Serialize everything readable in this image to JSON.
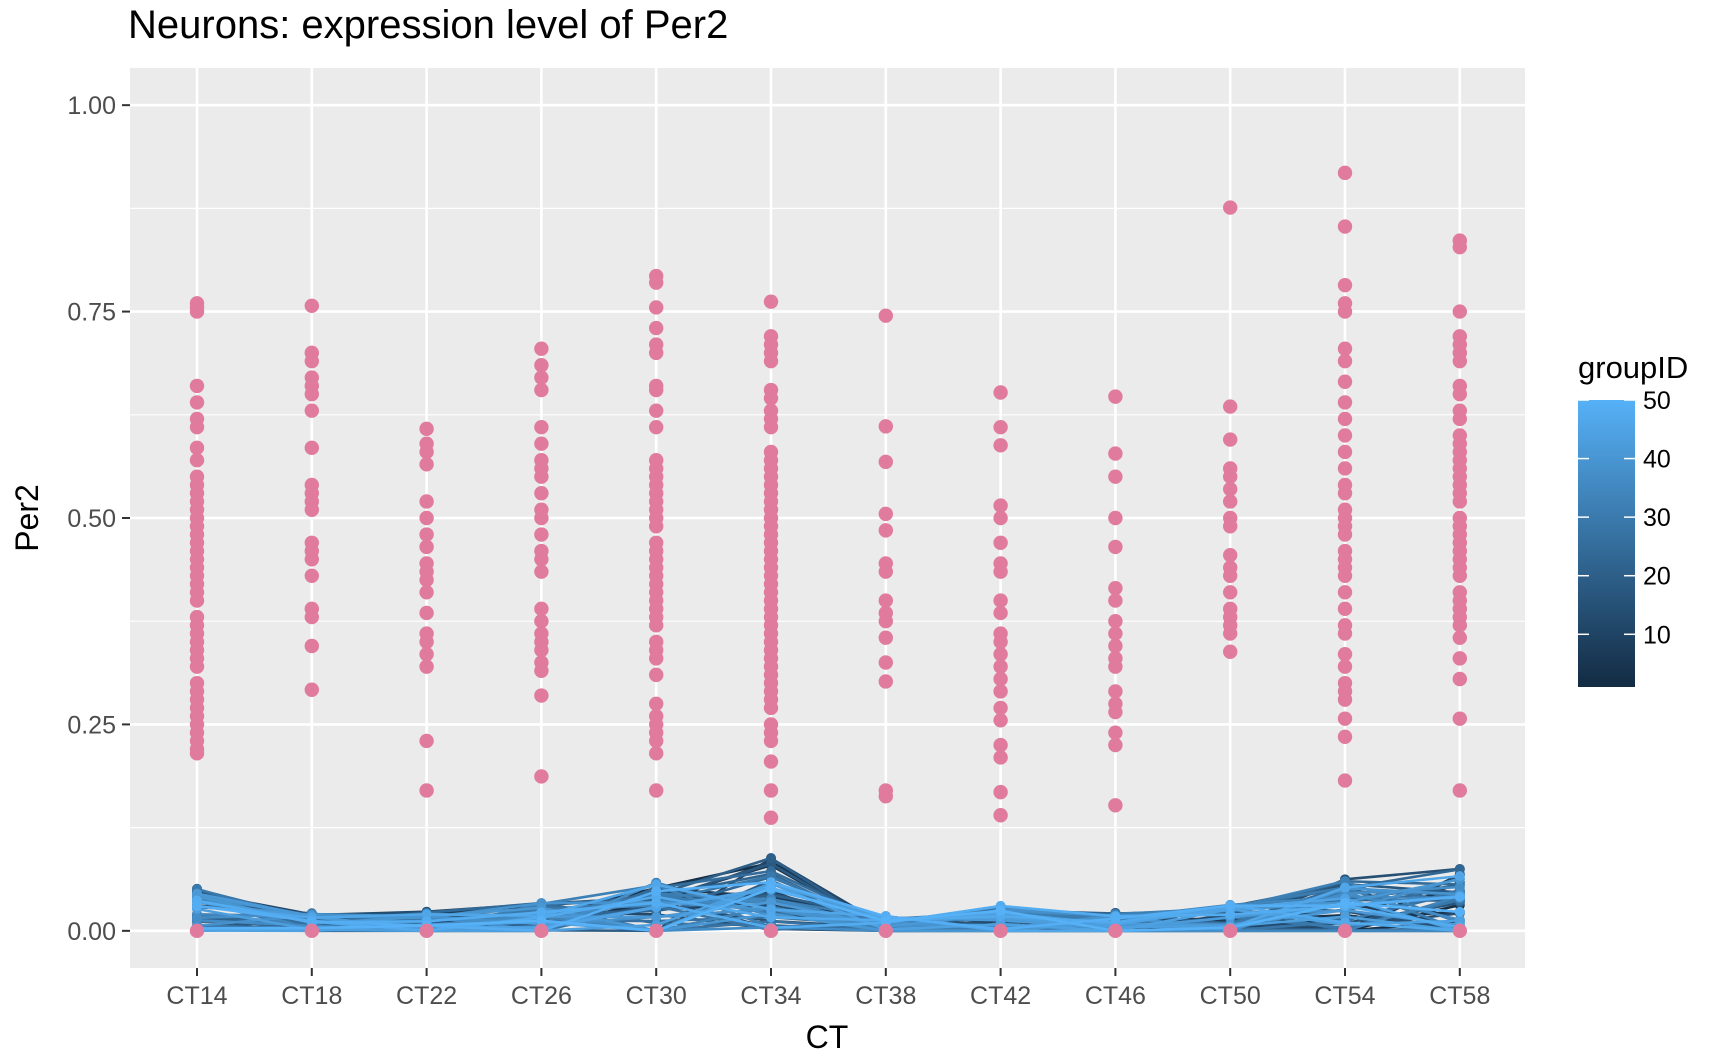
{
  "chart_data": {
    "type": "scatter",
    "title": "Neurons: expression level of Per2",
    "xlabel": "CT",
    "ylabel": "Per2",
    "categories": [
      "CT14",
      "CT18",
      "CT22",
      "CT26",
      "CT30",
      "CT34",
      "CT38",
      "CT42",
      "CT46",
      "CT50",
      "CT54",
      "CT58"
    ],
    "ylim": [
      -0.045,
      1.045
    ],
    "yticks": [
      0,
      0.25,
      0.5,
      0.75,
      1.0
    ],
    "ytick_labels": [
      "0.00",
      "0.25",
      "0.50",
      "0.75",
      "1.00"
    ],
    "grid": true,
    "point_color": "#e07b9e",
    "panel_background": "#ebebeb",
    "points": [
      [
        0.76,
        0.755,
        0.75,
        0.66,
        0.64,
        0.62,
        0.61,
        0.585,
        0.57,
        0.55,
        0.54,
        0.53,
        0.52,
        0.51,
        0.5,
        0.49,
        0.48,
        0.47,
        0.46,
        0.45,
        0.44,
        0.43,
        0.42,
        0.41,
        0.4,
        0.38,
        0.37,
        0.36,
        0.35,
        0.34,
        0.33,
        0.32,
        0.3,
        0.29,
        0.28,
        0.27,
        0.26,
        0.25,
        0.24,
        0.23,
        0.22,
        0.215,
        0
      ],
      [
        0.757,
        0.7,
        0.69,
        0.67,
        0.66,
        0.65,
        0.63,
        0.585,
        0.54,
        0.53,
        0.52,
        0.51,
        0.47,
        0.46,
        0.45,
        0.43,
        0.39,
        0.38,
        0.345,
        0.292,
        0
      ],
      [
        0.608,
        0.59,
        0.58,
        0.565,
        0.52,
        0.5,
        0.48,
        0.465,
        0.445,
        0.435,
        0.425,
        0.41,
        0.385,
        0.36,
        0.35,
        0.335,
        0.32,
        0.23,
        0.17,
        0
      ],
      [
        0.705,
        0.685,
        0.67,
        0.655,
        0.61,
        0.59,
        0.57,
        0.56,
        0.55,
        0.53,
        0.51,
        0.5,
        0.48,
        0.46,
        0.45,
        0.435,
        0.39,
        0.375,
        0.36,
        0.35,
        0.34,
        0.325,
        0.315,
        0.285,
        0.187,
        0
      ],
      [
        0.793,
        0.785,
        0.755,
        0.73,
        0.71,
        0.7,
        0.66,
        0.655,
        0.63,
        0.61,
        0.57,
        0.56,
        0.55,
        0.54,
        0.53,
        0.52,
        0.51,
        0.5,
        0.49,
        0.47,
        0.46,
        0.45,
        0.44,
        0.43,
        0.42,
        0.41,
        0.4,
        0.39,
        0.38,
        0.37,
        0.35,
        0.34,
        0.33,
        0.31,
        0.275,
        0.26,
        0.25,
        0.24,
        0.23,
        0.215,
        0.17,
        0
      ],
      [
        0.762,
        0.72,
        0.71,
        0.7,
        0.69,
        0.655,
        0.645,
        0.63,
        0.62,
        0.61,
        0.58,
        0.57,
        0.56,
        0.55,
        0.54,
        0.53,
        0.52,
        0.51,
        0.5,
        0.49,
        0.48,
        0.47,
        0.46,
        0.45,
        0.44,
        0.43,
        0.42,
        0.41,
        0.4,
        0.39,
        0.38,
        0.37,
        0.36,
        0.35,
        0.34,
        0.33,
        0.32,
        0.31,
        0.3,
        0.29,
        0.28,
        0.27,
        0.25,
        0.24,
        0.23,
        0.205,
        0.17,
        0.137,
        0
      ],
      [
        0.745,
        0.611,
        0.568,
        0.505,
        0.485,
        0.445,
        0.435,
        0.4,
        0.385,
        0.375,
        0.355,
        0.325,
        0.302,
        0.17,
        0.163,
        0
      ],
      [
        0.652,
        0.61,
        0.588,
        0.515,
        0.5,
        0.47,
        0.445,
        0.435,
        0.4,
        0.385,
        0.36,
        0.35,
        0.335,
        0.32,
        0.305,
        0.29,
        0.27,
        0.255,
        0.225,
        0.21,
        0.168,
        0.14,
        0
      ],
      [
        0.647,
        0.578,
        0.55,
        0.5,
        0.465,
        0.415,
        0.4,
        0.375,
        0.36,
        0.345,
        0.33,
        0.32,
        0.29,
        0.275,
        0.265,
        0.24,
        0.225,
        0.152,
        0
      ],
      [
        0.876,
        0.635,
        0.595,
        0.56,
        0.55,
        0.535,
        0.52,
        0.5,
        0.49,
        0.455,
        0.44,
        0.43,
        0.41,
        0.39,
        0.38,
        0.37,
        0.36,
        0.338,
        0
      ],
      [
        0.918,
        0.853,
        0.782,
        0.76,
        0.75,
        0.705,
        0.69,
        0.665,
        0.64,
        0.62,
        0.6,
        0.58,
        0.56,
        0.54,
        0.53,
        0.51,
        0.5,
        0.49,
        0.48,
        0.46,
        0.45,
        0.44,
        0.43,
        0.41,
        0.39,
        0.37,
        0.36,
        0.335,
        0.32,
        0.3,
        0.29,
        0.28,
        0.257,
        0.235,
        0.182,
        0
      ],
      [
        0.836,
        0.828,
        0.75,
        0.72,
        0.71,
        0.7,
        0.69,
        0.66,
        0.65,
        0.63,
        0.62,
        0.6,
        0.59,
        0.58,
        0.57,
        0.56,
        0.55,
        0.54,
        0.53,
        0.52,
        0.5,
        0.49,
        0.48,
        0.47,
        0.46,
        0.45,
        0.44,
        0.43,
        0.41,
        0.4,
        0.39,
        0.38,
        0.37,
        0.355,
        0.33,
        0.305,
        0.257,
        0.17,
        0
      ]
    ],
    "line_series_count": 50,
    "line_profile": {
      "base": [
        0.022,
        0.01,
        0.008,
        0.015,
        0.02,
        0.045,
        0.004,
        0.01,
        0.008,
        0.012,
        0.025,
        0.03
      ],
      "spread": [
        0.045,
        0.018,
        0.022,
        0.028,
        0.055,
        0.065,
        0.02,
        0.03,
        0.02,
        0.03,
        0.055,
        0.065
      ]
    },
    "legend": {
      "title": "groupID",
      "labels": [
        "50",
        "40",
        "30",
        "20",
        "10"
      ],
      "values": [
        50,
        40,
        30,
        20,
        10
      ],
      "range": [
        1,
        50
      ],
      "color_low": "#132b43",
      "color_high": "#56b1f7",
      "placement": "right"
    }
  }
}
